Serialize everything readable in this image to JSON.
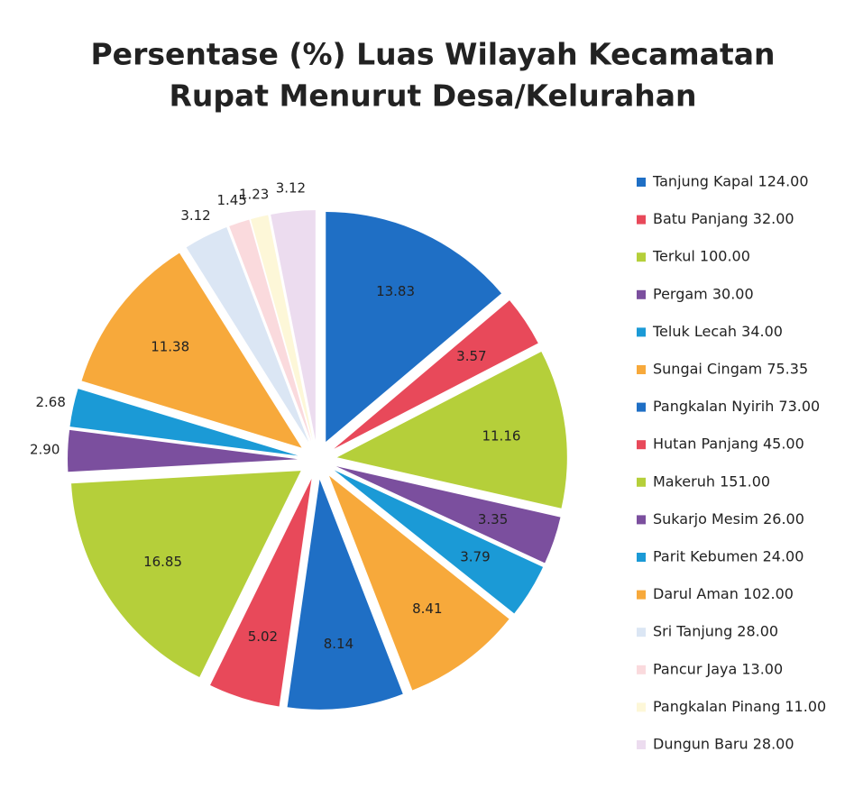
{
  "chart_data": {
    "type": "pie",
    "title": [
      "Persentase (%) Luas Wilayah Kecamatan",
      "Rupat Menurut Desa/Kelurahan"
    ],
    "categories": [
      "Tanjung Kapal 124.00",
      "Batu Panjang 32.00",
      "Terkul 100.00",
      "Pergam 30.00",
      "Teluk Lecah 34.00",
      "Sungai Cingam 75.35",
      "Pangkalan Nyirih 73.00",
      "Hutan Panjang 45.00",
      "Makeruh 151.00",
      "Sukarjo Mesim 26.00",
      "Parit Kebumen 24.00",
      "Darul Aman 102.00",
      "Sri Tanjung 28.00",
      "Pancur Jaya 13.00",
      "Pangkalan Pinang 11.00",
      "Dungun Baru 28.00"
    ],
    "values": [
      13.83,
      3.57,
      11.16,
      3.35,
      3.79,
      8.41,
      8.14,
      5.02,
      16.85,
      2.9,
      2.68,
      11.38,
      3.12,
      1.45,
      1.23,
      3.12
    ],
    "value_labels": [
      "13.83",
      "3.57",
      "11.16",
      "3.35",
      "3.79",
      "8.41",
      "8.14",
      "5.02",
      "16.85",
      "2.90",
      "2.68",
      "11.38",
      "3.12",
      "1.45",
      "1.23",
      "3.12"
    ],
    "colors": [
      "#1f6fc5",
      "#e8495a",
      "#b5cf3a",
      "#7b4f9e",
      "#1b9ad6",
      "#f7a93b",
      "#1f6fc5",
      "#e8495a",
      "#b5cf3a",
      "#7b4f9e",
      "#1b9ad6",
      "#f7a93b",
      "#dbe6f4",
      "#fadadd",
      "#fdf7d8",
      "#ecdcef"
    ],
    "legend": "right"
  }
}
